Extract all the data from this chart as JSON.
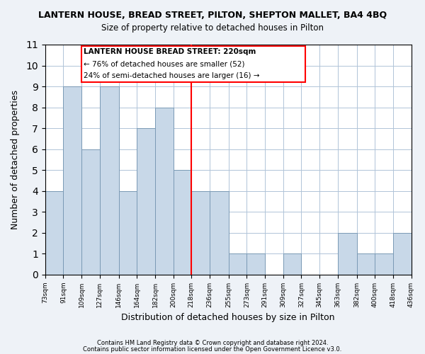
{
  "title_main": "LANTERN HOUSE, BREAD STREET, PILTON, SHEPTON MALLET, BA4 4BQ",
  "title_sub": "Size of property relative to detached houses in Pilton",
  "xlabel": "Distribution of detached houses by size in Pilton",
  "ylabel": "Number of detached properties",
  "bin_edges": [
    73,
    91,
    109,
    127,
    146,
    164,
    182,
    200,
    218,
    236,
    255,
    273,
    291,
    309,
    327,
    345,
    363,
    382,
    400,
    418,
    436
  ],
  "bar_heights": [
    4,
    9,
    6,
    9,
    4,
    7,
    8,
    5,
    4,
    4,
    1,
    1,
    0,
    1,
    0,
    0,
    2,
    1,
    1,
    2
  ],
  "bar_color": "#c8d8e8",
  "bar_edge_color": "#7a9ab5",
  "red_line_x": 218,
  "ylim": [
    0,
    11
  ],
  "yticks": [
    0,
    1,
    2,
    3,
    4,
    5,
    6,
    7,
    8,
    9,
    10,
    11
  ],
  "xtick_labels": [
    "73sqm",
    "91sqm",
    "109sqm",
    "127sqm",
    "146sqm",
    "164sqm",
    "182sqm",
    "200sqm",
    "218sqm",
    "236sqm",
    "255sqm",
    "273sqm",
    "291sqm",
    "309sqm",
    "327sqm",
    "345sqm",
    "363sqm",
    "382sqm",
    "400sqm",
    "418sqm",
    "436sqm"
  ],
  "annotation_title": "LANTERN HOUSE BREAD STREET: 220sqm",
  "annotation_line1": "← 76% of detached houses are smaller (52)",
  "annotation_line2": "24% of semi-detached houses are larger (16) →",
  "footer_line1": "Contains HM Land Registry data © Crown copyright and database right 2024.",
  "footer_line2": "Contains public sector information licensed under the Open Government Licence v3.0.",
  "background_color": "#eef2f7",
  "plot_background_color": "#ffffff",
  "grid_color": "#b0c4d8"
}
